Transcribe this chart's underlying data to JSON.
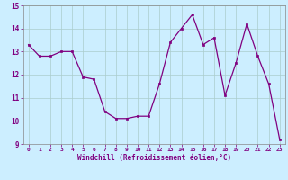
{
  "x": [
    0,
    1,
    2,
    3,
    4,
    5,
    6,
    7,
    8,
    9,
    10,
    11,
    12,
    13,
    14,
    15,
    16,
    17,
    18,
    19,
    20,
    21,
    22,
    23
  ],
  "y": [
    13.3,
    12.8,
    12.8,
    13.0,
    13.0,
    11.9,
    11.8,
    10.4,
    10.1,
    10.1,
    10.2,
    10.2,
    11.6,
    13.4,
    14.0,
    14.6,
    13.3,
    13.6,
    11.1,
    12.5,
    14.2,
    12.8,
    11.6,
    9.2
  ],
  "line_color": "#800080",
  "marker_color": "#800080",
  "bg_color": "#cceeff",
  "grid_color": "#aacccc",
  "xlabel": "Windchill (Refroidissement éolien,°C)",
  "ylim": [
    9,
    15
  ],
  "xlim": [
    -0.5,
    23.5
  ],
  "yticks": [
    9,
    10,
    11,
    12,
    13,
    14,
    15
  ],
  "xticks": [
    0,
    1,
    2,
    3,
    4,
    5,
    6,
    7,
    8,
    9,
    10,
    11,
    12,
    13,
    14,
    15,
    16,
    17,
    18,
    19,
    20,
    21,
    22,
    23
  ]
}
